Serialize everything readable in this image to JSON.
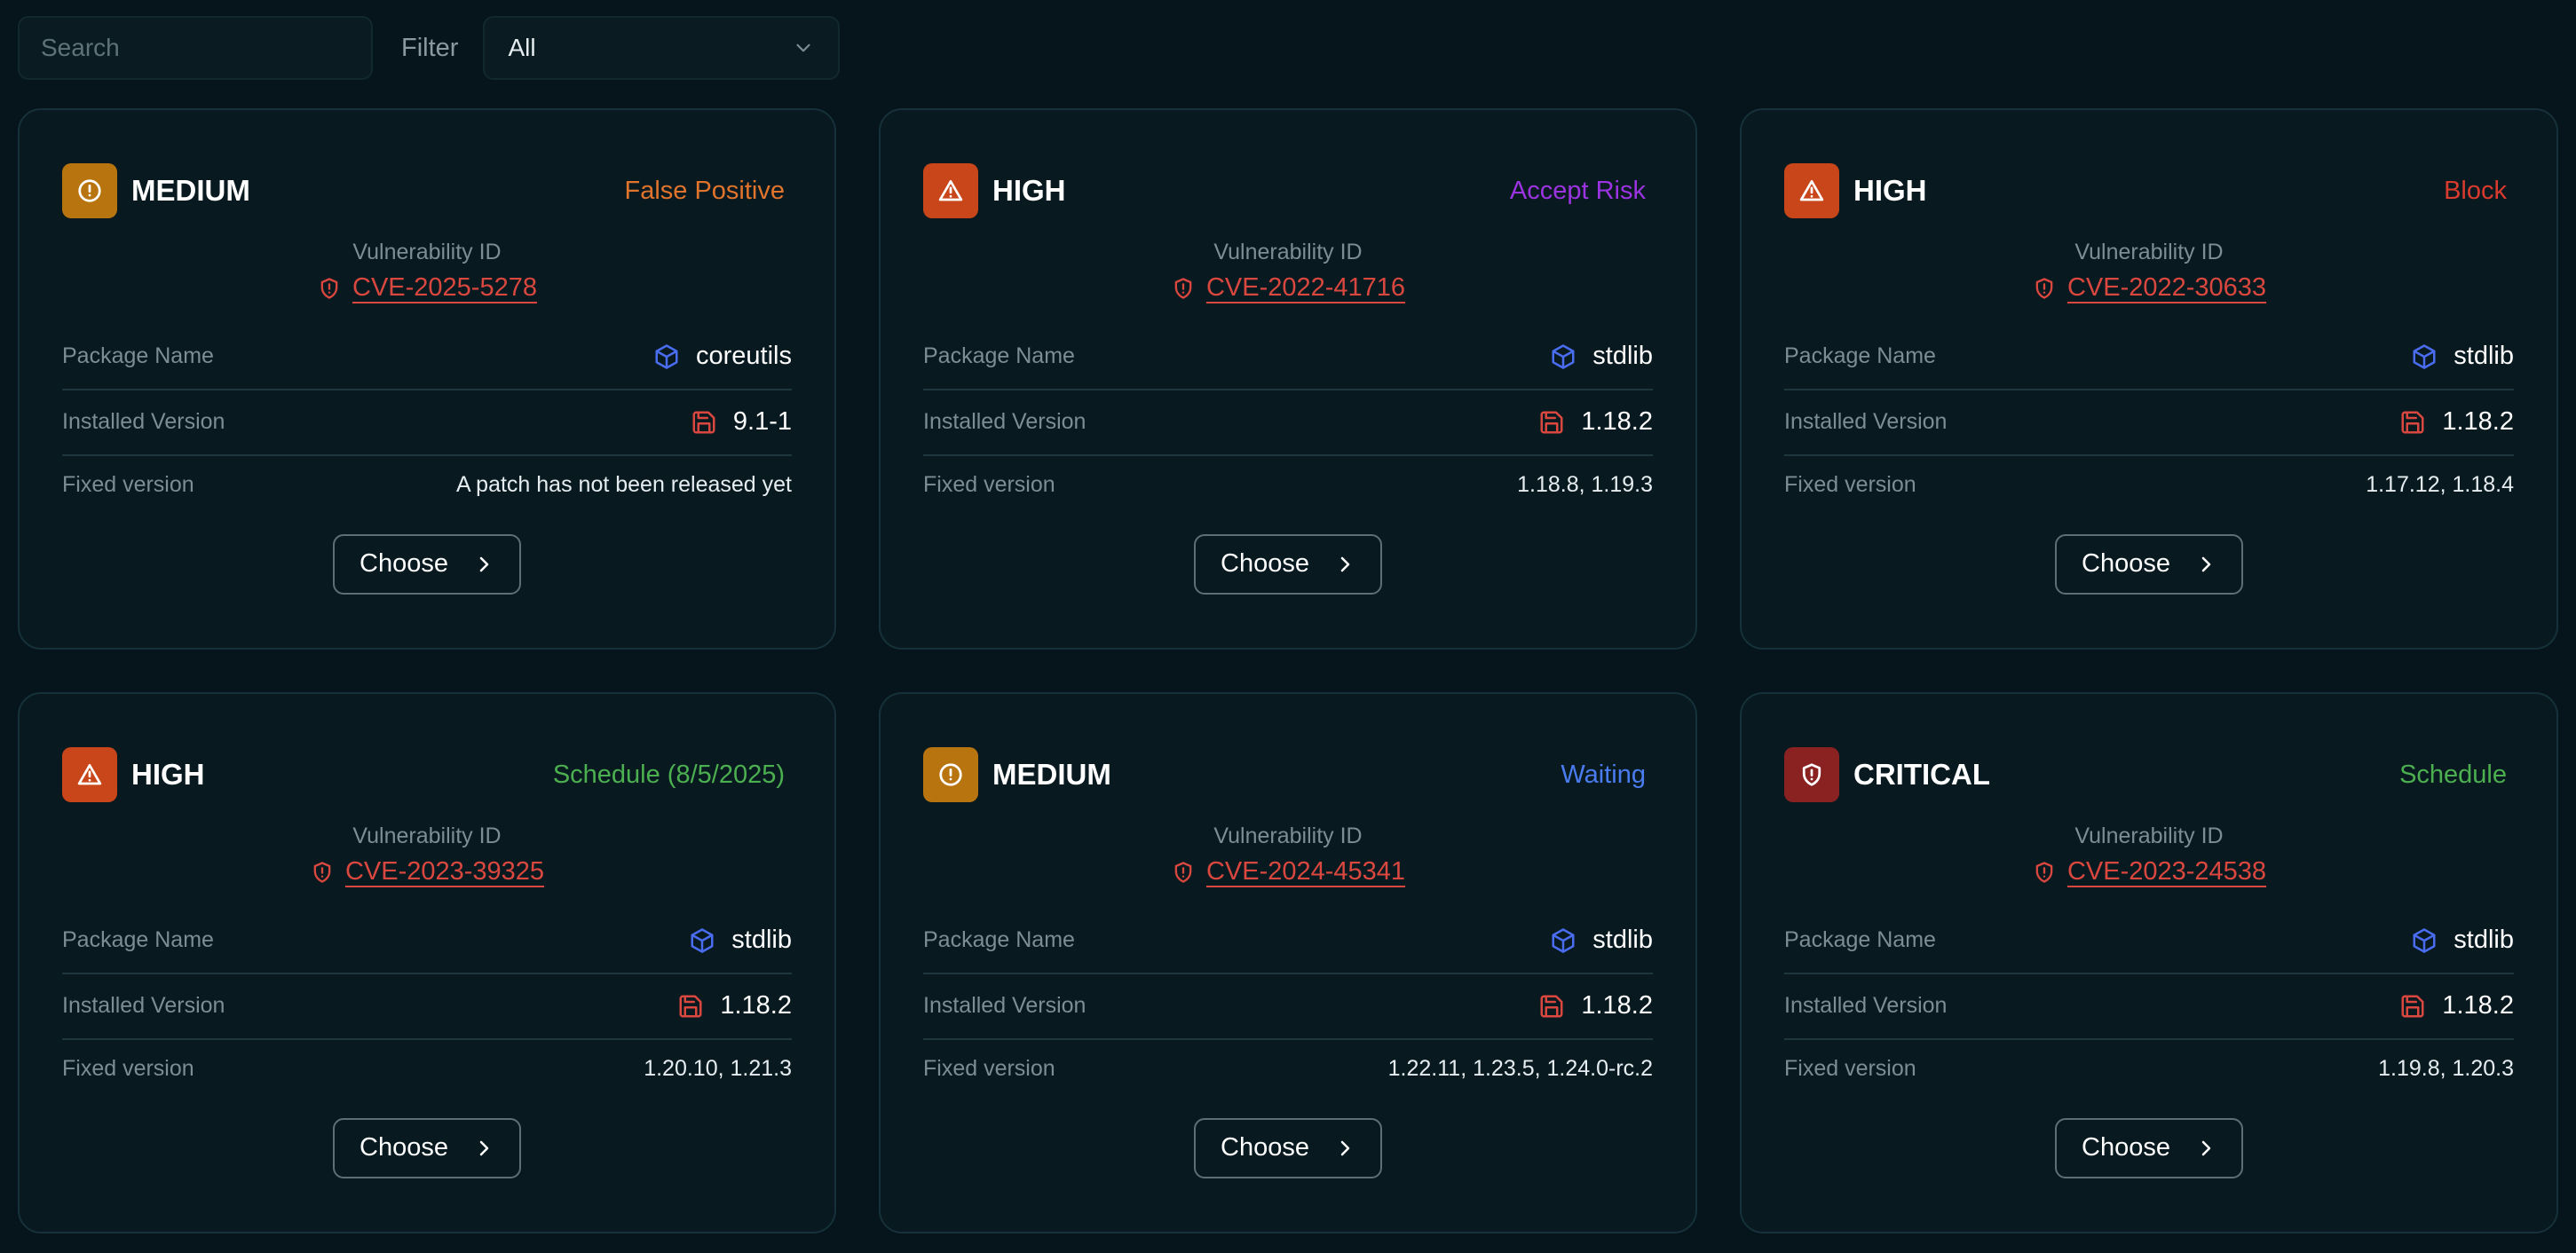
{
  "toolbar": {
    "search_placeholder": "Search",
    "filter_label": "Filter",
    "filter_value": "All"
  },
  "labels": {
    "vuln_caption": "Vulnerability ID",
    "package_name": "Package Name",
    "installed_version": "Installed Version",
    "fixed_version": "Fixed version",
    "choose": "Choose"
  },
  "severity_colors": {
    "MEDIUM": "#b8750f",
    "HIGH": "#c9461a",
    "CRITICAL": "#8a2222"
  },
  "severity_icons": {
    "MEDIUM": "alert-circle-icon",
    "HIGH": "warning-triangle-icon",
    "CRITICAL": "shield-alert-icon"
  },
  "cards": [
    {
      "severity": "MEDIUM",
      "status": "False Positive",
      "status_color": "#e0742c",
      "vuln_id": "CVE-2025-5278",
      "package": "coreutils",
      "installed": "9.1-1",
      "fixed": "A patch has not been released yet"
    },
    {
      "severity": "HIGH",
      "status": "Accept Risk",
      "status_color": "#9b34e0",
      "vuln_id": "CVE-2022-41716",
      "package": "stdlib",
      "installed": "1.18.2",
      "fixed": "1.18.8, 1.19.3"
    },
    {
      "severity": "HIGH",
      "status": "Block",
      "status_color": "#d83a2e",
      "vuln_id": "CVE-2022-30633",
      "package": "stdlib",
      "installed": "1.18.2",
      "fixed": "1.17.12, 1.18.4"
    },
    {
      "severity": "HIGH",
      "status": "Schedule (8/5/2025)",
      "status_color": "#4caf50",
      "vuln_id": "CVE-2023-39325",
      "package": "stdlib",
      "installed": "1.18.2",
      "fixed": "1.20.10, 1.21.3"
    },
    {
      "severity": "MEDIUM",
      "status": "Waiting",
      "status_color": "#4a7cf0",
      "vuln_id": "CVE-2024-45341",
      "package": "stdlib",
      "installed": "1.18.2",
      "fixed": "1.22.11, 1.23.5, 1.24.0-rc.2"
    },
    {
      "severity": "CRITICAL",
      "status": "Schedule",
      "status_color": "#4caf50",
      "vuln_id": "CVE-2023-24538",
      "package": "stdlib",
      "installed": "1.18.2",
      "fixed": "1.19.8, 1.20.3"
    }
  ]
}
